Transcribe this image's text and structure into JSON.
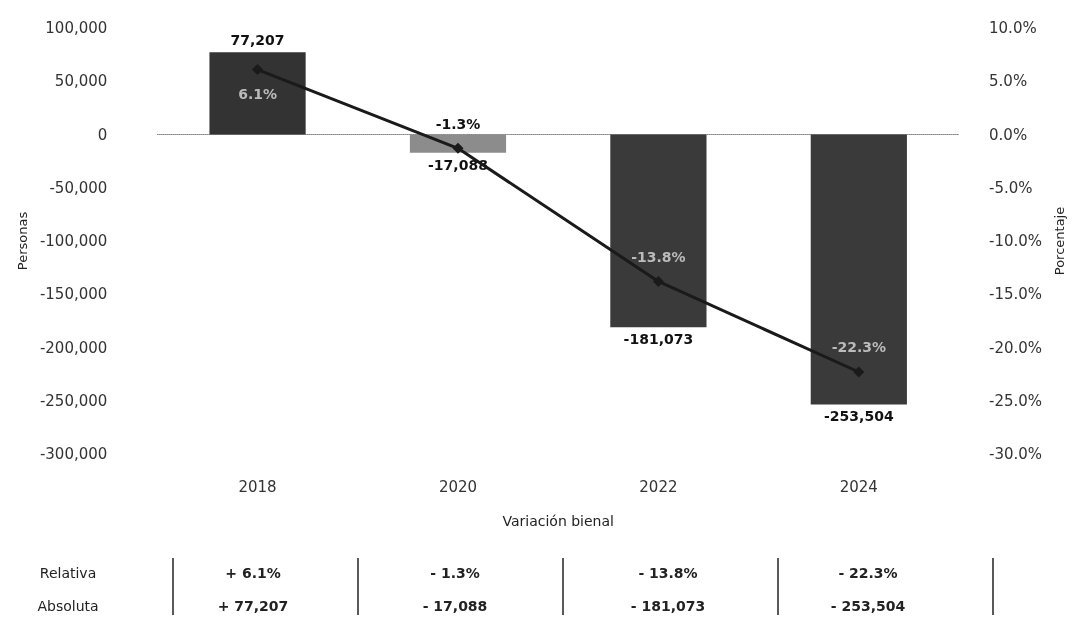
{
  "chart_data": {
    "type": "bar",
    "xlabel": "Variación bienal",
    "ylabel": "Personas",
    "y2label": "Porcentaje",
    "categories": [
      "2018",
      "2020",
      "2022",
      "2024"
    ],
    "series": [
      {
        "colors": [
          "#333333",
          "#8c8c8c",
          "#3a3a3a",
          "#3a3a3a"
        ],
        "values": [
          77207,
          -17088,
          -181073,
          -253504
        ],
        "value_labels": [
          "77,207",
          "-17,088",
          "-181,073",
          "-253,504"
        ]
      },
      {
        "type": "line",
        "axis": "y2",
        "color": "#1a1a1a",
        "marker": "diamond",
        "values": [
          6.1,
          -1.3,
          -13.8,
          -22.3
        ],
        "value_labels": [
          "6.1%",
          "-1.3%",
          "-13.8%",
          "-22.3%"
        ]
      }
    ],
    "ylim": [
      -300000,
      100000
    ],
    "yticks": [
      {
        "value": 100000,
        "label": "100,000"
      },
      {
        "value": 50000,
        "label": "50,000"
      },
      {
        "value": 0,
        "label": "0"
      },
      {
        "value": -50000,
        "label": "-50,000"
      },
      {
        "value": -100000,
        "label": "-100,000"
      },
      {
        "value": -150000,
        "label": "-150,000"
      },
      {
        "value": -200000,
        "label": "-200,000"
      },
      {
        "value": -250000,
        "label": "-250,000"
      },
      {
        "value": -300000,
        "label": "-300,000"
      }
    ],
    "y2lim": [
      -30,
      10
    ],
    "y2ticks": [
      {
        "value": 10,
        "label": "10.0%"
      },
      {
        "value": 5,
        "label": "5.0%"
      },
      {
        "value": 0,
        "label": "0.0%"
      },
      {
        "value": -5,
        "label": "-5.0%"
      },
      {
        "value": -10,
        "label": "-10.0%"
      },
      {
        "value": -15,
        "label": "-15.0%"
      },
      {
        "value": -20,
        "label": "-20.0%"
      },
      {
        "value": -25,
        "label": "-25.0%"
      },
      {
        "value": -30,
        "label": "-30.0%"
      }
    ],
    "annotations": [
      "Relativa",
      "+ 6.1%",
      "- 1.3%",
      "- 13.8%",
      "- 22.3%",
      "Absoluta",
      "+ 77,207",
      "- 17,088",
      "- 181,073",
      "- 253,504"
    ]
  }
}
